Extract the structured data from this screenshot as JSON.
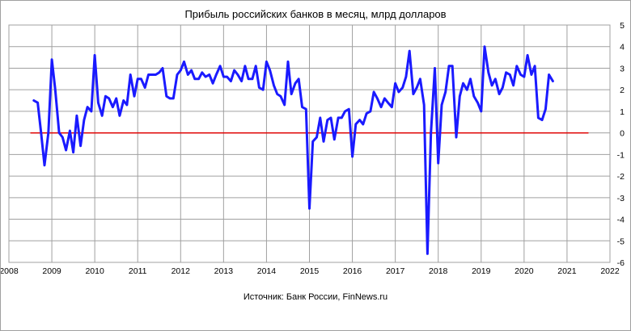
{
  "chart_data": {
    "type": "line",
    "title": "Прибыль российских банков в месяц, млрд долларов",
    "source": "Источник: Банк России, FinNews.ru",
    "xlabel": "",
    "ylabel": "",
    "xlim": [
      2008,
      2022
    ],
    "ylim": [
      -6,
      5
    ],
    "x_ticks": [
      "2008",
      "2009",
      "2010",
      "2011",
      "2012",
      "2013",
      "2014",
      "2015",
      "2016",
      "2017",
      "2018",
      "2019",
      "2020",
      "2021",
      "2022"
    ],
    "y_ticks": [
      "-6",
      "-5",
      "-4",
      "-3",
      "-2",
      "-1",
      "0",
      "1",
      "2",
      "3",
      "4",
      "5"
    ],
    "grid": true,
    "legend": "none",
    "zero_line": {
      "y": 0,
      "from": 2008.5,
      "to": 2021.5,
      "color": "#e00000"
    },
    "series": [
      {
        "color": "#1a1aff",
        "x": [
          2008.58,
          2008.67,
          2008.75,
          2008.83,
          2008.92,
          2009.0,
          2009.08,
          2009.17,
          2009.25,
          2009.33,
          2009.42,
          2009.5,
          2009.58,
          2009.67,
          2009.75,
          2009.83,
          2009.92,
          2010.0,
          2010.08,
          2010.17,
          2010.25,
          2010.33,
          2010.42,
          2010.5,
          2010.58,
          2010.67,
          2010.75,
          2010.83,
          2010.92,
          2011.0,
          2011.08,
          2011.17,
          2011.25,
          2011.33,
          2011.42,
          2011.5,
          2011.58,
          2011.67,
          2011.75,
          2011.83,
          2011.92,
          2012.0,
          2012.08,
          2012.17,
          2012.25,
          2012.33,
          2012.42,
          2012.5,
          2012.58,
          2012.67,
          2012.75,
          2012.83,
          2012.92,
          2013.0,
          2013.08,
          2013.17,
          2013.25,
          2013.33,
          2013.42,
          2013.5,
          2013.58,
          2013.67,
          2013.75,
          2013.83,
          2013.92,
          2014.0,
          2014.08,
          2014.17,
          2014.25,
          2014.33,
          2014.42,
          2014.5,
          2014.58,
          2014.67,
          2014.75,
          2014.83,
          2014.92,
          2015.0,
          2015.08,
          2015.17,
          2015.25,
          2015.33,
          2015.42,
          2015.5,
          2015.58,
          2015.67,
          2015.75,
          2015.83,
          2015.92,
          2016.0,
          2016.08,
          2016.17,
          2016.25,
          2016.33,
          2016.42,
          2016.5,
          2016.58,
          2016.67,
          2016.75,
          2016.83,
          2016.92,
          2017.0,
          2017.08,
          2017.17,
          2017.25,
          2017.33,
          2017.42,
          2017.5,
          2017.58,
          2017.67,
          2017.75,
          2017.83,
          2017.92,
          2018.0,
          2018.08,
          2018.17,
          2018.25,
          2018.33,
          2018.42,
          2018.5,
          2018.58,
          2018.67,
          2018.75,
          2018.83,
          2018.92,
          2019.0,
          2019.08,
          2019.17,
          2019.25,
          2019.33,
          2019.42,
          2019.5,
          2019.58,
          2019.67,
          2019.75,
          2019.83,
          2019.92,
          2020.0,
          2020.08,
          2020.17,
          2020.25,
          2020.33,
          2020.42,
          2020.5,
          2020.58,
          2020.67
        ],
        "values": [
          1.5,
          1.4,
          0.0,
          -1.5,
          0.0,
          3.4,
          2.0,
          0.0,
          -0.2,
          -0.8,
          0.1,
          -0.9,
          0.8,
          -0.6,
          0.6,
          1.2,
          1.0,
          3.6,
          1.4,
          0.8,
          1.7,
          1.6,
          1.2,
          1.6,
          0.8,
          1.5,
          1.3,
          2.7,
          1.7,
          2.5,
          2.5,
          2.1,
          2.7,
          2.7,
          2.7,
          2.8,
          3.0,
          1.7,
          1.6,
          1.6,
          2.7,
          2.9,
          3.3,
          2.7,
          2.9,
          2.5,
          2.5,
          2.8,
          2.6,
          2.7,
          2.3,
          2.7,
          3.1,
          2.6,
          2.6,
          2.4,
          2.9,
          2.7,
          2.4,
          3.1,
          2.5,
          2.5,
          3.1,
          2.1,
          2.0,
          3.3,
          2.9,
          2.2,
          1.8,
          1.7,
          1.3,
          3.3,
          1.8,
          2.3,
          2.5,
          1.2,
          1.1,
          -3.5,
          -0.4,
          -0.2,
          0.7,
          -0.4,
          0.6,
          0.7,
          -0.3,
          0.7,
          0.7,
          1.0,
          1.1,
          -1.1,
          0.4,
          0.6,
          0.4,
          0.9,
          1.0,
          1.9,
          1.6,
          1.2,
          1.6,
          1.4,
          1.2,
          2.3,
          1.9,
          2.1,
          2.6,
          3.8,
          1.8,
          2.1,
          2.5,
          1.3,
          -5.6,
          0.0,
          3.0,
          -1.4,
          1.3,
          1.9,
          3.1,
          3.1,
          -0.2,
          1.7,
          2.3,
          2.0,
          2.5,
          1.7,
          1.4,
          1.0,
          4.0,
          2.8,
          2.2,
          2.5,
          1.8,
          2.1,
          2.8,
          2.7,
          2.2,
          3.1,
          2.7,
          2.6,
          3.6,
          2.7,
          3.1,
          0.7,
          0.6,
          1.1,
          2.7,
          2.4
        ]
      }
    ]
  }
}
